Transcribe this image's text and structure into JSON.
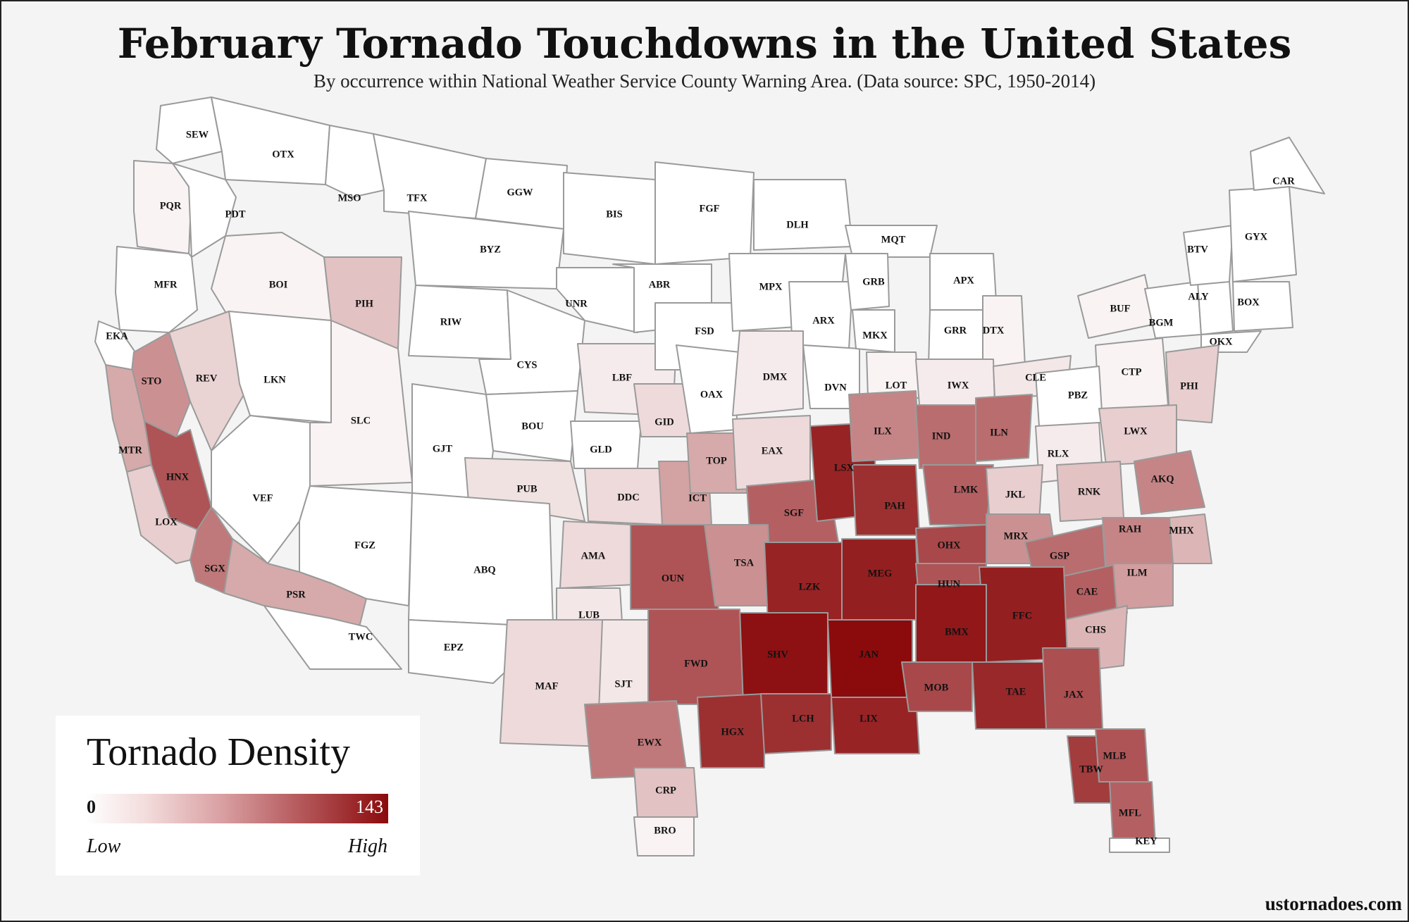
{
  "title": "February Tornado Touchdowns in the United States",
  "subtitle": "By occurrence within National Weather Service County Warning Area. (Data source: SPC, 1950-2014)",
  "legend": {
    "title": "Tornado Density",
    "min_label": "0",
    "max_label": "143",
    "low_label": "Low",
    "high_label": "High",
    "min_color": "#ffffff",
    "max_color": "#8b0b0d"
  },
  "credit": "ustornadoes.com",
  "regions": [
    {
      "code": "SEW",
      "level": 0.0
    },
    {
      "code": "OTX",
      "level": 0.0
    },
    {
      "code": "PQR",
      "level": 0.05
    },
    {
      "code": "PDT",
      "level": 0.0
    },
    {
      "code": "MFR",
      "level": 0.0
    },
    {
      "code": "EKA",
      "level": 0.0
    },
    {
      "code": "BOI",
      "level": 0.05
    },
    {
      "code": "PIH",
      "level": 0.25
    },
    {
      "code": "MSO",
      "level": 0.0
    },
    {
      "code": "TFX",
      "level": 0.0
    },
    {
      "code": "GGW",
      "level": 0.0
    },
    {
      "code": "BYZ",
      "level": 0.0
    },
    {
      "code": "STO",
      "level": 0.45
    },
    {
      "code": "REV",
      "level": 0.18
    },
    {
      "code": "LKN",
      "level": 0.0
    },
    {
      "code": "SLC",
      "level": 0.05
    },
    {
      "code": "RIW",
      "level": 0.0
    },
    {
      "code": "CYS",
      "level": 0.0
    },
    {
      "code": "UNR",
      "level": 0.0
    },
    {
      "code": "BIS",
      "level": 0.0
    },
    {
      "code": "FGF",
      "level": 0.0
    },
    {
      "code": "ABR",
      "level": 0.0
    },
    {
      "code": "MTR",
      "level": 0.35
    },
    {
      "code": "HNX",
      "level": 0.7
    },
    {
      "code": "VEF",
      "level": 0.0
    },
    {
      "code": "LOX",
      "level": 0.2
    },
    {
      "code": "SGX",
      "level": 0.55
    },
    {
      "code": "PSR",
      "level": 0.35
    },
    {
      "code": "FGZ",
      "level": 0.0
    },
    {
      "code": "TWC",
      "level": 0.0
    },
    {
      "code": "GJT",
      "level": 0.0
    },
    {
      "code": "BOU",
      "level": 0.0
    },
    {
      "code": "PUB",
      "level": 0.12
    },
    {
      "code": "ABQ",
      "level": 0.0
    },
    {
      "code": "EPZ",
      "level": 0.0
    },
    {
      "code": "GLD",
      "level": 0.0
    },
    {
      "code": "LBF",
      "level": 0.08
    },
    {
      "code": "GID",
      "level": 0.15
    },
    {
      "code": "FSD",
      "level": 0.0
    },
    {
      "code": "OAX",
      "level": 0.0
    },
    {
      "code": "DLH",
      "level": 0.0
    },
    {
      "code": "MPX",
      "level": 0.0
    },
    {
      "code": "ARX",
      "level": 0.0
    },
    {
      "code": "DMX",
      "level": 0.08
    },
    {
      "code": "DVN",
      "level": 0.0
    },
    {
      "code": "MQT",
      "level": 0.0
    },
    {
      "code": "GRB",
      "level": 0.0
    },
    {
      "code": "MKX",
      "level": 0.0
    },
    {
      "code": "APX",
      "level": 0.0
    },
    {
      "code": "GRR",
      "level": 0.0
    },
    {
      "code": "DTX",
      "level": 0.05
    },
    {
      "code": "LOT",
      "level": 0.05
    },
    {
      "code": "IWX",
      "level": 0.08
    },
    {
      "code": "CLE",
      "level": 0.1
    },
    {
      "code": "BUF",
      "level": 0.05
    },
    {
      "code": "BGM",
      "level": 0.0
    },
    {
      "code": "ALY",
      "level": 0.0
    },
    {
      "code": "BTV",
      "level": 0.0
    },
    {
      "code": "GYX",
      "level": 0.0
    },
    {
      "code": "CAR",
      "level": 0.0
    },
    {
      "code": "BOX",
      "level": 0.0
    },
    {
      "code": "OKX",
      "level": 0.0
    },
    {
      "code": "CTP",
      "level": 0.05
    },
    {
      "code": "PBZ",
      "level": 0.0
    },
    {
      "code": "PHI",
      "level": 0.2
    },
    {
      "code": "LWX",
      "level": 0.2
    },
    {
      "code": "RLX",
      "level": 0.08
    },
    {
      "code": "AKQ",
      "level": 0.5
    },
    {
      "code": "DDC",
      "level": 0.15
    },
    {
      "code": "ICT",
      "level": 0.38
    },
    {
      "code": "TOP",
      "level": 0.35
    },
    {
      "code": "EAX",
      "level": 0.15
    },
    {
      "code": "SGF",
      "level": 0.65
    },
    {
      "code": "LSX",
      "level": 0.9
    },
    {
      "code": "ILX",
      "level": 0.5
    },
    {
      "code": "IND",
      "level": 0.6
    },
    {
      "code": "ILN",
      "level": 0.6
    },
    {
      "code": "PAH",
      "level": 0.85
    },
    {
      "code": "LMK",
      "level": 0.65
    },
    {
      "code": "JKL",
      "level": 0.2
    },
    {
      "code": "RNK",
      "level": 0.25
    },
    {
      "code": "AMA",
      "level": 0.15
    },
    {
      "code": "LUB",
      "level": 0.1
    },
    {
      "code": "OUN",
      "level": 0.7
    },
    {
      "code": "TSA",
      "level": 0.45
    },
    {
      "code": "LZK",
      "level": 0.9
    },
    {
      "code": "MEG",
      "level": 0.92
    },
    {
      "code": "OHX",
      "level": 0.75
    },
    {
      "code": "MRX",
      "level": 0.45
    },
    {
      "code": "HUN",
      "level": 0.7
    },
    {
      "code": "GSP",
      "level": 0.6
    },
    {
      "code": "RAH",
      "level": 0.5
    },
    {
      "code": "MHX",
      "level": 0.3
    },
    {
      "code": "CAE",
      "level": 0.65
    },
    {
      "code": "ILM",
      "level": 0.4
    },
    {
      "code": "CHS",
      "level": 0.3
    },
    {
      "code": "FFC",
      "level": 0.92
    },
    {
      "code": "BMX",
      "level": 0.95
    },
    {
      "code": "JAN",
      "level": 1.0
    },
    {
      "code": "SHV",
      "level": 0.98
    },
    {
      "code": "MAF",
      "level": 0.15
    },
    {
      "code": "SJT",
      "level": 0.1
    },
    {
      "code": "FWD",
      "level": 0.7
    },
    {
      "code": "EWX",
      "level": 0.55
    },
    {
      "code": "HGX",
      "level": 0.85
    },
    {
      "code": "LCH",
      "level": 0.85
    },
    {
      "code": "LIX",
      "level": 0.9
    },
    {
      "code": "MOB",
      "level": 0.75
    },
    {
      "code": "TAE",
      "level": 0.88
    },
    {
      "code": "JAX",
      "level": 0.72
    },
    {
      "code": "TBW",
      "level": 0.8
    },
    {
      "code": "MLB",
      "level": 0.7
    },
    {
      "code": "MFL",
      "level": 0.65
    },
    {
      "code": "KEY",
      "level": 0.0
    },
    {
      "code": "CRP",
      "level": 0.25
    },
    {
      "code": "BRO",
      "level": 0.05
    }
  ]
}
